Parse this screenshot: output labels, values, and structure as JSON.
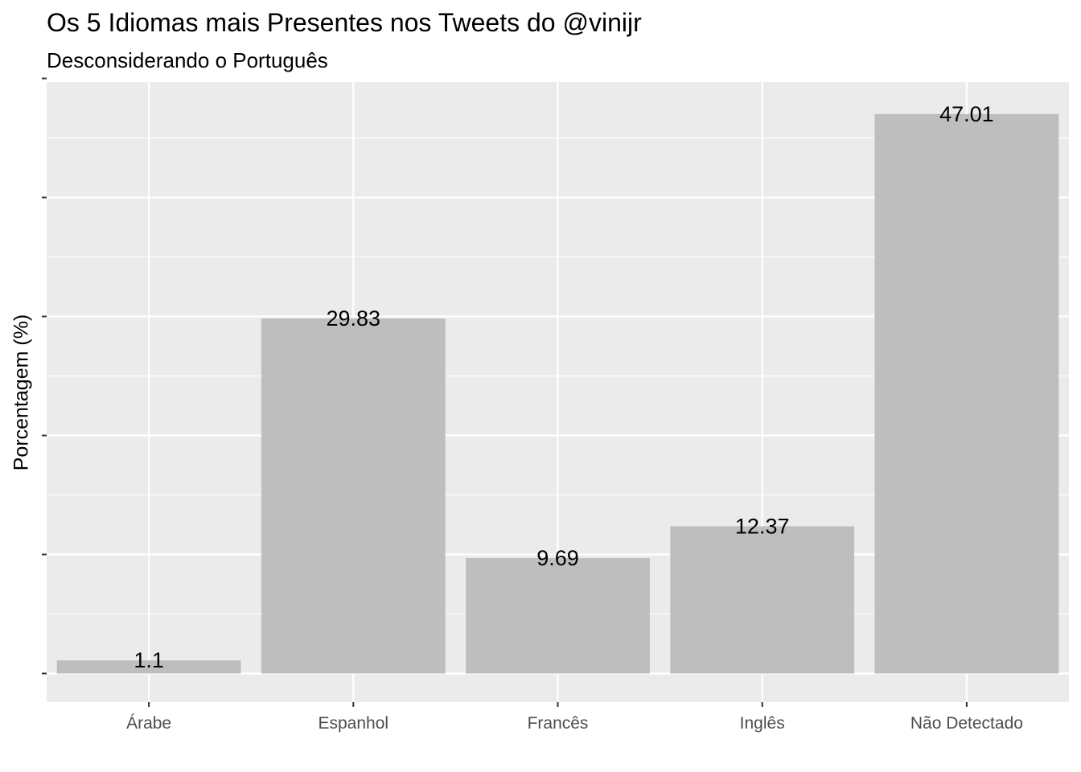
{
  "chart_data": {
    "type": "bar",
    "title": "Os 5 Idiomas mais Presentes nos Tweets do @vinijr",
    "subtitle": "Desconsiderando o Português",
    "xlabel": "",
    "ylabel": "Porcentagem (%)",
    "categories": [
      "Árabe",
      "Espanhol",
      "Francês",
      "Inglês",
      "Não Detectado"
    ],
    "values": [
      1.1,
      29.83,
      9.69,
      12.37,
      47.01
    ],
    "data_labels": [
      "1.1",
      "29.83",
      "9.69",
      "12.37",
      "47.01"
    ],
    "ylim": [
      -2.4,
      49.7
    ],
    "y_ticks": [
      0,
      10,
      20,
      30,
      40,
      50
    ],
    "y_tick_labels_shown": false,
    "grid": true,
    "panel_background": "#ebebeb",
    "bar_color": "#bebebe",
    "grid_color": "#ffffff"
  }
}
